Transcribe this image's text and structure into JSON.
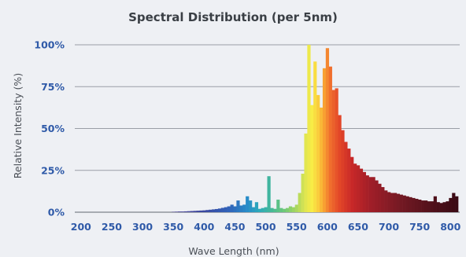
{
  "chart_data": {
    "type": "bar",
    "title": "Spectral Distribution (per 5nm)",
    "xlabel": "Wave Length (nm)",
    "ylabel": "Relative Intensity (%)",
    "xlim": [
      190,
      815
    ],
    "ylim": [
      0,
      100
    ],
    "bin_width_nm": 5,
    "x_ticks": [
      200,
      250,
      300,
      350,
      400,
      450,
      500,
      550,
      600,
      650,
      700,
      750,
      800
    ],
    "x_tick_labels": [
      "200",
      "250",
      "300",
      "350",
      "400",
      "450",
      "500",
      "550",
      "600",
      "650",
      "700",
      "750",
      "800"
    ],
    "y_ticks": [
      0,
      25,
      50,
      75,
      100
    ],
    "y_tick_labels": [
      "0%",
      "25%",
      "50%",
      "75%",
      "100%"
    ],
    "grid": true,
    "series": [
      {
        "x": [
          350,
          355,
          360,
          365,
          370,
          375,
          380,
          385,
          390,
          395,
          400,
          405,
          410,
          415,
          420,
          425,
          430,
          435,
          440,
          445,
          450,
          455,
          460,
          465,
          470,
          475,
          480,
          485,
          490,
          495,
          500,
          505,
          510,
          515,
          520,
          525,
          530,
          535,
          540,
          545,
          550,
          555,
          560,
          565,
          570,
          575,
          580,
          585,
          590,
          595,
          600,
          605,
          610,
          615,
          620,
          625,
          630,
          635,
          640,
          645,
          650,
          655,
          660,
          665,
          670,
          675,
          680,
          685,
          690,
          695,
          700,
          705,
          710,
          715,
          720,
          725,
          730,
          735,
          740,
          745,
          750,
          755,
          760,
          765,
          770,
          775,
          780,
          785,
          790,
          795,
          800,
          805,
          810
        ],
        "values": [
          0.2,
          0.3,
          0.4,
          0.4,
          0.5,
          0.6,
          0.7,
          0.8,
          0.9,
          1.0,
          1.1,
          1.3,
          1.5,
          1.7,
          1.9,
          2.2,
          2.6,
          3.0,
          3.5,
          4.5,
          3.5,
          7.0,
          4.0,
          4.5,
          9.5,
          7.0,
          3.0,
          6.0,
          2.0,
          2.5,
          3.0,
          21.5,
          2.5,
          2.0,
          7.5,
          2.5,
          2.0,
          2.5,
          3.5,
          3.0,
          4.5,
          11.5,
          23.0,
          47.0,
          100.0,
          64.0,
          90.0,
          70.0,
          62.5,
          86.0,
          98.0,
          87.0,
          73.0,
          74.0,
          58.0,
          49.0,
          42.0,
          38.0,
          33.0,
          29.0,
          28.0,
          26.0,
          24.0,
          22.0,
          21.0,
          21.0,
          19.0,
          17.0,
          15.0,
          13.0,
          12.0,
          11.5,
          11.5,
          11.0,
          10.5,
          10.0,
          9.5,
          9.0,
          8.5,
          8.0,
          7.5,
          7.0,
          7.0,
          6.5,
          6.5,
          9.5,
          6.0,
          5.5,
          6.0,
          6.5,
          8.5,
          11.5,
          9.5
        ]
      }
    ]
  }
}
